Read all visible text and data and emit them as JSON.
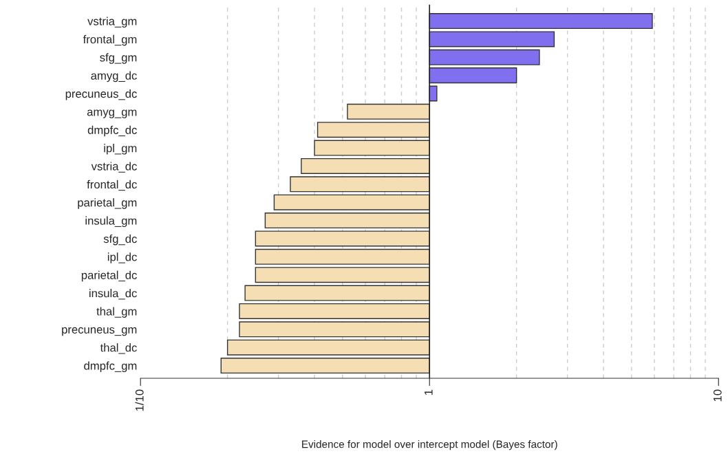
{
  "chart_data": {
    "type": "bar",
    "orientation": "horizontal",
    "log": "x",
    "xlabel": "Evidence for model over intercept model (Bayes factor)",
    "categories": [
      "vstria_gm",
      "frontal_gm",
      "sfg_gm",
      "amyg_dc",
      "precuneus_dc",
      "amyg_gm",
      "dmpfc_dc",
      "ipl_gm",
      "vstria_dc",
      "frontal_dc",
      "parietal_gm",
      "insula_gm",
      "sfg_dc",
      "ipl_dc",
      "parietal_dc",
      "insula_dc",
      "thal_gm",
      "precuneus_gm",
      "thal_dc",
      "dmpfc_gm"
    ],
    "values": [
      4.9,
      1.7,
      1.4,
      1.0,
      0.06,
      -0.48,
      -0.59,
      -0.6,
      -0.64,
      -0.67,
      -0.71,
      -0.73,
      -0.75,
      -0.75,
      -0.75,
      -0.77,
      -0.78,
      -0.78,
      -0.8,
      -0.81
    ],
    "base": [
      1,
      1,
      1,
      1,
      1,
      1,
      1,
      1,
      1,
      1,
      1,
      1,
      1,
      1,
      1,
      1,
      1,
      1,
      1,
      1
    ],
    "colors": [
      "#8070f0",
      "#8070f0",
      "#8070f0",
      "#8070f0",
      "#8070f0",
      "#f5deb3",
      "#f5deb3",
      "#f5deb3",
      "#f5deb3",
      "#f5deb3",
      "#f5deb3",
      "#f5deb3",
      "#f5deb3",
      "#f5deb3",
      "#f5deb3",
      "#f5deb3",
      "#f5deb3",
      "#f5deb3",
      "#f5deb3",
      "#f5deb3"
    ],
    "xlim": [
      0.1,
      10
    ],
    "xticks": [
      {
        "value": 0.1,
        "label": "1/10"
      },
      1,
      10
    ],
    "grid": "x"
  }
}
